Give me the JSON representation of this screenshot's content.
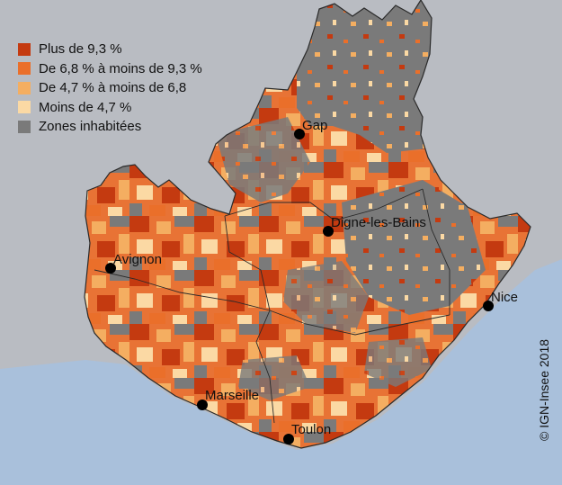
{
  "legend": {
    "items": [
      {
        "label": "Plus de 9,3 %",
        "color": "#c43a10"
      },
      {
        "label": "De 6,8 % à moins de 9,3 %",
        "color": "#ea6f2a"
      },
      {
        "label": "De 4,7 % à moins de 6,8",
        "color": "#f4ae61"
      },
      {
        "label": "Moins de 4,7 %",
        "color": "#fbd9a4"
      },
      {
        "label": "Zones inhabitées",
        "color": "#7a7a7a"
      }
    ]
  },
  "cities": [
    {
      "name": "Gap"
    },
    {
      "name": "Digne-les-Bains"
    },
    {
      "name": "Avignon"
    },
    {
      "name": "Nice"
    },
    {
      "name": "Marseille"
    },
    {
      "name": "Toulon"
    }
  ],
  "colors": {
    "sea": "#a9c0db",
    "land_outside": "#b9bcc2",
    "uninhabited": "#7a7a7a",
    "borders": "#2a2a2a"
  },
  "copyright": "© IGN-Insee 2018"
}
